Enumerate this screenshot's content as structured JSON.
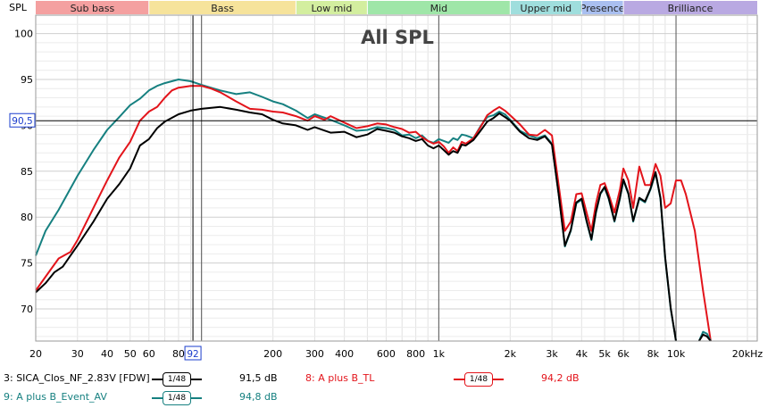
{
  "chart_data": {
    "type": "line",
    "title": "All SPL",
    "ylabel": "SPL",
    "xlabel": "",
    "x_scale": "log",
    "xlim": [
      20,
      22000
    ],
    "ylim": [
      66.5,
      102
    ],
    "grid": true,
    "x_tick_labels": [
      {
        "v": 20,
        "t": "20"
      },
      {
        "v": 30,
        "t": "30"
      },
      {
        "v": 40,
        "t": "40"
      },
      {
        "v": 50,
        "t": "50"
      },
      {
        "v": 60,
        "t": "60"
      },
      {
        "v": 80,
        "t": "80"
      },
      {
        "v": 100,
        "t": "100"
      },
      {
        "v": 200,
        "t": "200"
      },
      {
        "v": 300,
        "t": "300"
      },
      {
        "v": 400,
        "t": "400"
      },
      {
        "v": 600,
        "t": "600"
      },
      {
        "v": 800,
        "t": "800"
      },
      {
        "v": 1000,
        "t": "1k"
      },
      {
        "v": 2000,
        "t": "2k"
      },
      {
        "v": 3000,
        "t": "3k"
      },
      {
        "v": 4000,
        "t": "4k"
      },
      {
        "v": 5000,
        "t": "5k"
      },
      {
        "v": 6000,
        "t": "6k"
      },
      {
        "v": 8000,
        "t": "8k"
      },
      {
        "v": 10000,
        "t": "10k"
      },
      {
        "v": 20000,
        "t": "20kHz"
      }
    ],
    "y_tick_labels": [
      {
        "v": 70,
        "t": "70"
      },
      {
        "v": 75,
        "t": "75"
      },
      {
        "v": 80,
        "t": "80"
      },
      {
        "v": 85,
        "t": "85"
      },
      {
        "v": 90,
        "t": "90"
      },
      {
        "v": 95,
        "t": "95"
      },
      {
        "v": 100,
        "t": "100"
      }
    ],
    "bands": [
      {
        "name": "Sub bass",
        "from": 20,
        "to": 60,
        "color": "#f4a0a0"
      },
      {
        "name": "Bass",
        "from": 60,
        "to": 250,
        "color": "#f6e39b"
      },
      {
        "name": "Low mid",
        "from": 250,
        "to": 500,
        "color": "#d3ee9f"
      },
      {
        "name": "Mid",
        "from": 500,
        "to": 2000,
        "color": "#9fe6a8"
      },
      {
        "name": "Upper mid",
        "from": 2000,
        "to": 4000,
        "color": "#9fdedd"
      },
      {
        "name": "Presence",
        "from": 4000,
        "to": 6000,
        "color": "#a9bff0"
      },
      {
        "name": "Brilliance",
        "from": 6000,
        "to": 22000,
        "color": "#b9a9e2"
      }
    ],
    "cursor": {
      "x": 92,
      "y": 90.5,
      "x_label": "92",
      "y_label": "90,5"
    },
    "series": [
      {
        "name": "9: A plus B_Event_AV",
        "color": "#168080",
        "points": [
          [
            20,
            75.8
          ],
          [
            22,
            78.5
          ],
          [
            25,
            80.8
          ],
          [
            30,
            84.5
          ],
          [
            35,
            87.3
          ],
          [
            40,
            89.5
          ],
          [
            45,
            90.9
          ],
          [
            50,
            92.2
          ],
          [
            55,
            92.9
          ],
          [
            60,
            93.8
          ],
          [
            65,
            94.3
          ],
          [
            70,
            94.6
          ],
          [
            80,
            95.0
          ],
          [
            90,
            94.8
          ],
          [
            100,
            94.4
          ],
          [
            120,
            93.8
          ],
          [
            140,
            93.4
          ],
          [
            160,
            93.6
          ],
          [
            180,
            93.1
          ],
          [
            200,
            92.6
          ],
          [
            220,
            92.3
          ],
          [
            250,
            91.6
          ],
          [
            280,
            90.8
          ],
          [
            300,
            91.2
          ],
          [
            350,
            90.6
          ],
          [
            400,
            90.0
          ],
          [
            450,
            89.4
          ],
          [
            500,
            89.5
          ],
          [
            550,
            89.8
          ],
          [
            600,
            89.7
          ],
          [
            650,
            89.5
          ],
          [
            700,
            88.9
          ],
          [
            750,
            89.0
          ],
          [
            800,
            88.6
          ],
          [
            850,
            88.9
          ],
          [
            900,
            88.3
          ],
          [
            950,
            88.1
          ],
          [
            1000,
            88.5
          ],
          [
            1100,
            88.1
          ],
          [
            1150,
            88.6
          ],
          [
            1200,
            88.4
          ],
          [
            1250,
            89.0
          ],
          [
            1300,
            88.9
          ],
          [
            1400,
            88.6
          ],
          [
            1500,
            89.9
          ],
          [
            1600,
            90.9
          ],
          [
            1700,
            91.1
          ],
          [
            1800,
            91.5
          ],
          [
            1900,
            91.2
          ],
          [
            2000,
            90.6
          ],
          [
            2200,
            89.4
          ],
          [
            2400,
            88.9
          ],
          [
            2600,
            88.6
          ],
          [
            2800,
            88.9
          ],
          [
            3000,
            88.0
          ],
          [
            3200,
            82.5
          ],
          [
            3400,
            76.8
          ],
          [
            3600,
            78.5
          ],
          [
            3800,
            81.5
          ],
          [
            4000,
            81.9
          ],
          [
            4200,
            79.5
          ],
          [
            4400,
            77.5
          ],
          [
            4600,
            80.5
          ],
          [
            4800,
            82.5
          ],
          [
            5000,
            83.2
          ],
          [
            5200,
            82.0
          ],
          [
            5500,
            79.5
          ],
          [
            5800,
            82.0
          ],
          [
            6000,
            84.0
          ],
          [
            6300,
            82.5
          ],
          [
            6600,
            79.5
          ],
          [
            7000,
            82.0
          ],
          [
            7400,
            81.6
          ],
          [
            7800,
            83.0
          ],
          [
            8200,
            84.8
          ],
          [
            8600,
            82.0
          ],
          [
            9000,
            75.5
          ],
          [
            9500,
            70.0
          ],
          [
            10000,
            66.5
          ]
        ]
      },
      {
        "name": "8: A plus B_TL",
        "color": "#e3141b",
        "points": [
          [
            20,
            72.0
          ],
          [
            22,
            73.5
          ],
          [
            25,
            75.5
          ],
          [
            28,
            76.2
          ],
          [
            30,
            77.5
          ],
          [
            35,
            81.0
          ],
          [
            40,
            84.0
          ],
          [
            45,
            86.5
          ],
          [
            50,
            88.2
          ],
          [
            55,
            90.5
          ],
          [
            60,
            91.5
          ],
          [
            65,
            92.0
          ],
          [
            70,
            93.0
          ],
          [
            75,
            93.8
          ],
          [
            80,
            94.1
          ],
          [
            90,
            94.3
          ],
          [
            100,
            94.3
          ],
          [
            110,
            94.0
          ],
          [
            120,
            93.6
          ],
          [
            140,
            92.6
          ],
          [
            160,
            91.8
          ],
          [
            180,
            91.7
          ],
          [
            200,
            91.5
          ],
          [
            220,
            91.4
          ],
          [
            250,
            91.0
          ],
          [
            280,
            90.5
          ],
          [
            300,
            91.0
          ],
          [
            330,
            90.6
          ],
          [
            350,
            91.0
          ],
          [
            400,
            90.3
          ],
          [
            450,
            89.7
          ],
          [
            500,
            89.9
          ],
          [
            550,
            90.2
          ],
          [
            600,
            90.1
          ],
          [
            650,
            89.8
          ],
          [
            700,
            89.6
          ],
          [
            750,
            89.2
          ],
          [
            800,
            89.3
          ],
          [
            850,
            88.7
          ],
          [
            900,
            88.3
          ],
          [
            950,
            88.0
          ],
          [
            1000,
            88.2
          ],
          [
            1050,
            87.7
          ],
          [
            1100,
            87.0
          ],
          [
            1150,
            87.6
          ],
          [
            1200,
            87.2
          ],
          [
            1250,
            88.2
          ],
          [
            1300,
            88.0
          ],
          [
            1400,
            88.6
          ],
          [
            1500,
            89.8
          ],
          [
            1600,
            91.1
          ],
          [
            1700,
            91.6
          ],
          [
            1800,
            92.0
          ],
          [
            1900,
            91.6
          ],
          [
            2000,
            91.1
          ],
          [
            2200,
            90.1
          ],
          [
            2400,
            89.0
          ],
          [
            2600,
            88.9
          ],
          [
            2800,
            89.5
          ],
          [
            3000,
            88.9
          ],
          [
            3200,
            83.5
          ],
          [
            3400,
            78.5
          ],
          [
            3600,
            79.5
          ],
          [
            3800,
            82.5
          ],
          [
            4000,
            82.6
          ],
          [
            4200,
            80.5
          ],
          [
            4400,
            78.5
          ],
          [
            4600,
            81.5
          ],
          [
            4800,
            83.5
          ],
          [
            5000,
            83.7
          ],
          [
            5200,
            82.5
          ],
          [
            5500,
            80.5
          ],
          [
            5800,
            83.0
          ],
          [
            6000,
            85.3
          ],
          [
            6300,
            84.0
          ],
          [
            6600,
            81.0
          ],
          [
            7000,
            85.5
          ],
          [
            7400,
            83.5
          ],
          [
            7800,
            83.5
          ],
          [
            8200,
            85.8
          ],
          [
            8600,
            84.5
          ],
          [
            9000,
            81.0
          ],
          [
            9500,
            81.5
          ],
          [
            10000,
            84.0
          ],
          [
            10500,
            84.0
          ],
          [
            11000,
            82.5
          ],
          [
            12000,
            78.5
          ],
          [
            13000,
            72.0
          ],
          [
            14000,
            66.5
          ]
        ]
      },
      {
        "name": "3: SICA_Clos_NF_2.83V [FDW]",
        "color": "#000000",
        "points": [
          [
            20,
            71.8
          ],
          [
            22,
            72.8
          ],
          [
            24,
            74.0
          ],
          [
            26,
            74.6
          ],
          [
            28,
            75.8
          ],
          [
            30,
            76.9
          ],
          [
            35,
            79.5
          ],
          [
            40,
            82.0
          ],
          [
            45,
            83.6
          ],
          [
            50,
            85.3
          ],
          [
            55,
            87.8
          ],
          [
            60,
            88.5
          ],
          [
            65,
            89.7
          ],
          [
            70,
            90.4
          ],
          [
            80,
            91.2
          ],
          [
            90,
            91.6
          ],
          [
            100,
            91.8
          ],
          [
            120,
            92.0
          ],
          [
            140,
            91.7
          ],
          [
            160,
            91.4
          ],
          [
            180,
            91.2
          ],
          [
            200,
            90.6
          ],
          [
            220,
            90.2
          ],
          [
            250,
            90.0
          ],
          [
            280,
            89.5
          ],
          [
            300,
            89.8
          ],
          [
            350,
            89.2
          ],
          [
            400,
            89.3
          ],
          [
            450,
            88.7
          ],
          [
            500,
            89.0
          ],
          [
            550,
            89.6
          ],
          [
            600,
            89.4
          ],
          [
            650,
            89.2
          ],
          [
            700,
            88.8
          ],
          [
            750,
            88.6
          ],
          [
            800,
            88.3
          ],
          [
            850,
            88.5
          ],
          [
            900,
            87.8
          ],
          [
            950,
            87.5
          ],
          [
            1000,
            87.8
          ],
          [
            1050,
            87.3
          ],
          [
            1100,
            86.8
          ],
          [
            1150,
            87.2
          ],
          [
            1200,
            87.0
          ],
          [
            1250,
            87.9
          ],
          [
            1300,
            87.8
          ],
          [
            1400,
            88.4
          ],
          [
            1500,
            89.4
          ],
          [
            1600,
            90.4
          ],
          [
            1700,
            90.8
          ],
          [
            1800,
            91.3
          ],
          [
            1900,
            90.9
          ],
          [
            2000,
            90.5
          ],
          [
            2200,
            89.3
          ],
          [
            2400,
            88.6
          ],
          [
            2600,
            88.4
          ],
          [
            2800,
            88.8
          ],
          [
            3000,
            87.9
          ],
          [
            3200,
            82.5
          ],
          [
            3400,
            76.9
          ],
          [
            3600,
            78.6
          ],
          [
            3800,
            81.6
          ],
          [
            4000,
            82.0
          ],
          [
            4200,
            79.6
          ],
          [
            4400,
            77.6
          ],
          [
            4600,
            80.6
          ],
          [
            4800,
            82.6
          ],
          [
            5000,
            83.3
          ],
          [
            5200,
            82.1
          ],
          [
            5500,
            79.6
          ],
          [
            5800,
            82.1
          ],
          [
            6000,
            84.1
          ],
          [
            6300,
            82.6
          ],
          [
            6600,
            79.6
          ],
          [
            7000,
            82.1
          ],
          [
            7400,
            81.7
          ],
          [
            7800,
            83.1
          ],
          [
            8200,
            84.9
          ],
          [
            8600,
            82.1
          ],
          [
            9000,
            75.6
          ],
          [
            9500,
            70.1
          ],
          [
            10000,
            66.5
          ]
        ]
      }
    ],
    "extra_segments": [
      {
        "color": "#168080",
        "points": [
          [
            12500,
            66.5
          ],
          [
            13000,
            67.5
          ],
          [
            13500,
            67.3
          ],
          [
            14000,
            66.5
          ]
        ]
      },
      {
        "color": "#000000",
        "points": [
          [
            12500,
            66.5
          ],
          [
            13000,
            67.2
          ],
          [
            13500,
            67.0
          ],
          [
            14000,
            66.5
          ]
        ]
      }
    ],
    "legend": [
      {
        "label": "3: SICA_Clos_NF_2.83V [FDW]",
        "smoothing": "1/48",
        "value": "91,5 dB",
        "color": "#000000",
        "label_color": "#000000",
        "row": 0,
        "col": 0
      },
      {
        "label": "8: A plus B_TL",
        "smoothing": "1/48",
        "value": "94,2 dB",
        "color": "#e3141b",
        "label_color": "#e3141b",
        "row": 0,
        "col": 1
      },
      {
        "label": "9: A plus B_Event_AV",
        "smoothing": "1/48",
        "value": "94,8 dB",
        "color": "#168080",
        "label_color": "#168080",
        "row": 1,
        "col": 0
      }
    ]
  }
}
